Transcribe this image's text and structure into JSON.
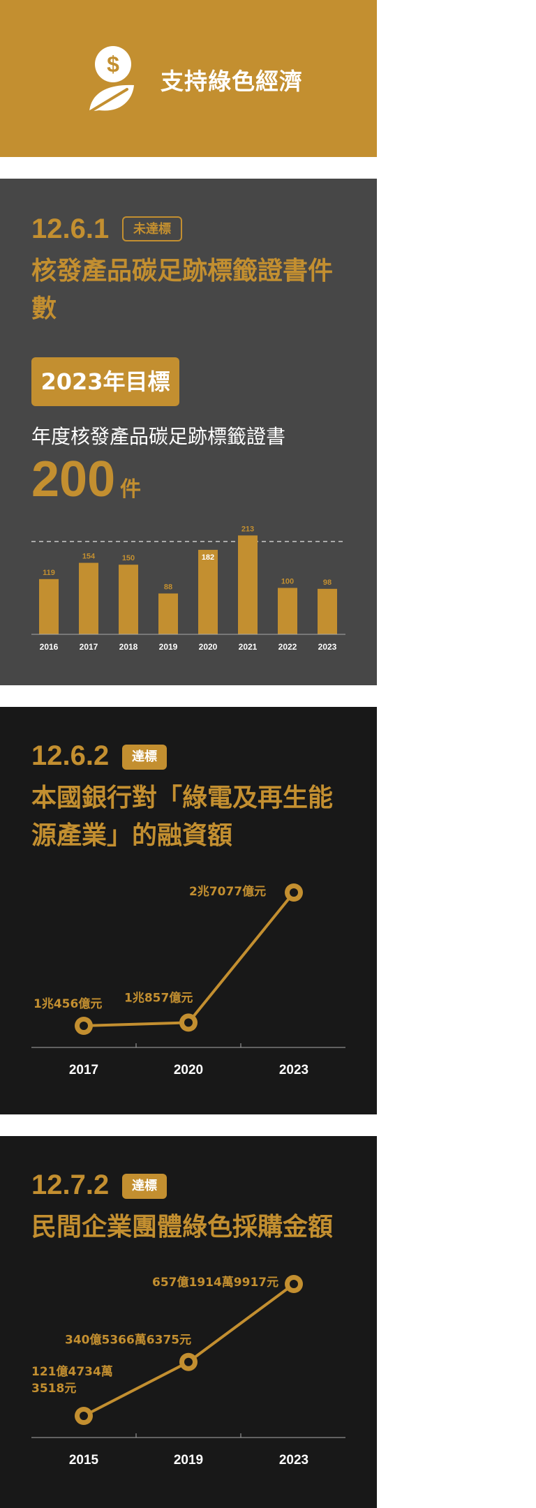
{
  "header": {
    "title": "支持綠色經濟",
    "icon": "money-leaf-icon"
  },
  "sections": [
    {
      "code": "12.6.1",
      "badge": "未達標",
      "title": "核發產品碳足跡標籤證書件數",
      "goal_label": "2023年目標",
      "goal_desc": "年度核發產品碳足跡標籤證書",
      "goal_value": "200",
      "goal_unit": "件"
    },
    {
      "code": "12.6.2",
      "badge": "達標",
      "title": "本國銀行對「綠電及再生能源產業」的融資額"
    },
    {
      "code": "12.7.2",
      "badge": "達標",
      "title": "民間企業團體綠色採購金額"
    }
  ],
  "colors": {
    "accent": "#C38F30",
    "panel_gray": "#474747",
    "panel_dark": "#181818",
    "axis": "#aaaaaa"
  },
  "chart_data": [
    {
      "type": "bar",
      "categories": [
        "2016",
        "2017",
        "2018",
        "2019",
        "2020",
        "2021",
        "2022",
        "2023"
      ],
      "values": [
        119,
        154,
        150,
        88,
        182,
        213,
        100,
        98
      ],
      "data_labels": [
        "119",
        "154",
        "150",
        "88",
        "182",
        "213",
        "100",
        "98"
      ],
      "target": 200,
      "target_line": "dashed",
      "ylim": [
        0,
        230
      ]
    },
    {
      "type": "line",
      "categories": [
        "2017",
        "2020",
        "2023"
      ],
      "values": [
        10456,
        10857,
        27077
      ],
      "data_labels": [
        "1兆456億元",
        "1兆857億元",
        "2兆7077億元"
      ],
      "unit": "億元"
    },
    {
      "type": "line",
      "categories": [
        "2015",
        "2019",
        "2023"
      ],
      "values": [
        121.47343518,
        340.53666375,
        657.19149917
      ],
      "data_labels": [
        [
          "121億4734萬",
          "3518元"
        ],
        [
          "340億5366萬6375元"
        ],
        [
          "657億1914萬9917元"
        ]
      ],
      "unit": "億元"
    }
  ]
}
